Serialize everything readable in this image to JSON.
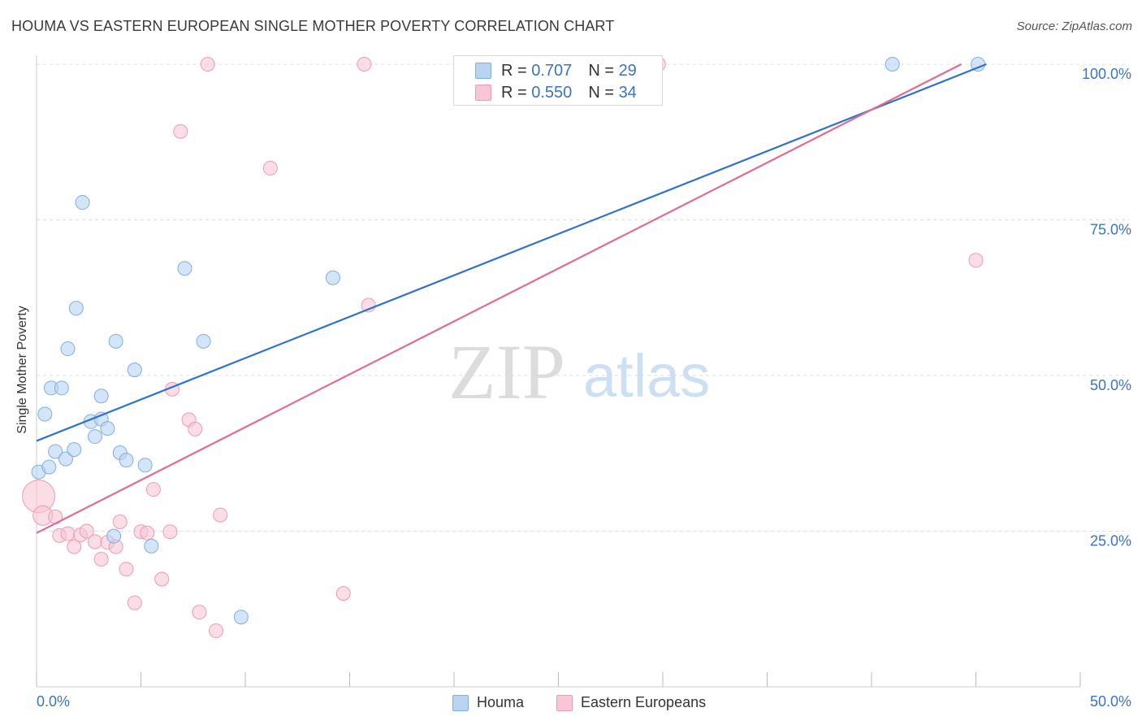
{
  "header": {
    "title": "HOUMA VS EASTERN EUROPEAN SINGLE MOTHER POVERTY CORRELATION CHART",
    "source_label": "Source:",
    "source_value": "ZipAtlas.com"
  },
  "watermark": {
    "part1": "ZIP",
    "part2": "atlas"
  },
  "legend": {
    "rows": [
      {
        "r_label": "R =",
        "r_value": "0.707",
        "n_label": "N =",
        "n_value": "29"
      },
      {
        "r_label": "R =",
        "r_value": "0.550",
        "n_label": "N =",
        "n_value": "34"
      }
    ]
  },
  "colors": {
    "houma_fill": "#b9d3f3",
    "houma_stroke": "#7eaee6",
    "houma_line": "#2e72cf",
    "eastern_fill": "#f8c6d5",
    "eastern_stroke": "#ee9ab5",
    "eastern_line": "#e26b96",
    "tick_label": "#3b73c8",
    "grid": "#dddddd"
  },
  "chart_data": {
    "type": "scatter",
    "title": "HOUMA VS EASTERN EUROPEAN SINGLE MOTHER POVERTY CORRELATION CHART",
    "xlabel": "",
    "ylabel": "Single Mother Poverty",
    "xlim": [
      0,
      50
    ],
    "ylim": [
      0,
      102
    ],
    "x_tick_labels": [
      "0.0%",
      "50.0%"
    ],
    "y_ticks": [
      25,
      50,
      75,
      100
    ],
    "y_tick_labels": [
      "25.0%",
      "50.0%",
      "75.0%",
      "100.0%"
    ],
    "grid": "horizontal dashed",
    "legend_position": "top-center and bottom",
    "series": [
      {
        "name": "Houma",
        "r": 0.707,
        "n": 29,
        "trend": {
          "x": [
            0,
            45.5
          ],
          "y": [
            39.5,
            100
          ]
        },
        "points": [
          [
            0.1,
            34.5
          ],
          [
            0.4,
            43.8
          ],
          [
            0.6,
            35.3
          ],
          [
            0.7,
            48.0
          ],
          [
            0.9,
            37.8
          ],
          [
            1.2,
            48.0
          ],
          [
            1.4,
            36.6
          ],
          [
            1.5,
            54.3
          ],
          [
            1.8,
            38.1
          ],
          [
            1.9,
            60.8
          ],
          [
            2.2,
            77.8
          ],
          [
            2.6,
            42.6
          ],
          [
            2.8,
            40.2
          ],
          [
            3.1,
            43.0
          ],
          [
            3.1,
            46.7
          ],
          [
            3.4,
            41.5
          ],
          [
            3.7,
            24.2
          ],
          [
            3.8,
            55.5
          ],
          [
            4.0,
            37.6
          ],
          [
            4.3,
            36.4
          ],
          [
            4.7,
            50.9
          ],
          [
            5.2,
            35.6
          ],
          [
            5.5,
            22.6
          ],
          [
            7.1,
            67.2
          ],
          [
            8.0,
            55.5
          ],
          [
            9.8,
            11.2
          ],
          [
            14.2,
            65.7
          ],
          [
            41.0,
            100
          ],
          [
            45.1,
            100
          ]
        ]
      },
      {
        "name": "Eastern Europeans",
        "r": 0.55,
        "n": 34,
        "trend": {
          "x": [
            0,
            44.3
          ],
          "y": [
            24.7,
            100
          ]
        },
        "points": [
          [
            0.1,
            30.6
          ],
          [
            0.3,
            27.5
          ],
          [
            0.9,
            27.3
          ],
          [
            1.1,
            24.3
          ],
          [
            1.5,
            24.6
          ],
          [
            1.8,
            22.5
          ],
          [
            2.1,
            24.4
          ],
          [
            2.4,
            25.0
          ],
          [
            2.8,
            23.3
          ],
          [
            3.1,
            20.5
          ],
          [
            3.4,
            23.2
          ],
          [
            3.8,
            22.5
          ],
          [
            4.0,
            26.5
          ],
          [
            4.3,
            18.9
          ],
          [
            4.7,
            13.5
          ],
          [
            5.0,
            24.9
          ],
          [
            5.3,
            24.7
          ],
          [
            5.6,
            31.7
          ],
          [
            6.0,
            17.3
          ],
          [
            6.4,
            24.9
          ],
          [
            6.5,
            47.8
          ],
          [
            6.9,
            89.2
          ],
          [
            7.3,
            42.9
          ],
          [
            7.6,
            41.4
          ],
          [
            7.8,
            12.0
          ],
          [
            8.2,
            100
          ],
          [
            8.6,
            9.0
          ],
          [
            8.8,
            27.6
          ],
          [
            11.2,
            83.3
          ],
          [
            14.7,
            15.0
          ],
          [
            15.7,
            100
          ],
          [
            15.9,
            61.3
          ],
          [
            29.8,
            100
          ],
          [
            45.0,
            68.5
          ]
        ]
      }
    ]
  }
}
